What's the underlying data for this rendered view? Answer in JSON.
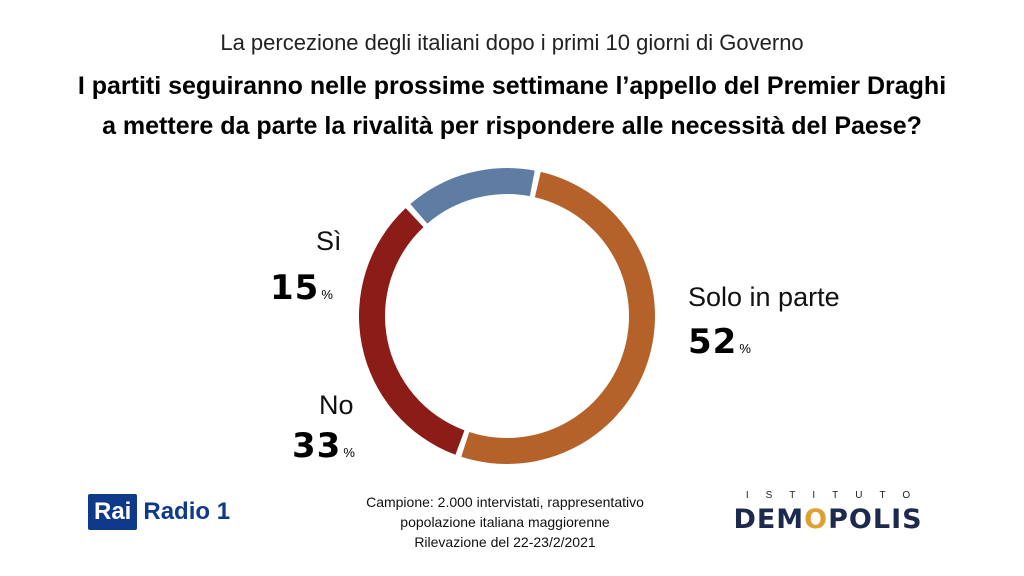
{
  "header": {
    "subtitle": "La percezione degli italiani dopo i primi 10 giorni di Governo",
    "title_line1": "I partiti seguiranno nelle prossime settimane l’appello del Premier Draghi",
    "title_line2": "a mettere da parte la rivalità per rispondere alle necessità del Paese?"
  },
  "chart_data": {
    "type": "pie",
    "variant": "donut",
    "slices": [
      {
        "label": "Solo in parte",
        "value": 52,
        "color": "#b5612a"
      },
      {
        "label": "No",
        "value": 33,
        "color": "#8c1c18"
      },
      {
        "label": "Sì",
        "value": 15,
        "color": "#5f7ca3"
      }
    ],
    "unit": "%"
  },
  "labels": {
    "si": {
      "name": "Sì",
      "value": "15",
      "unit": "%"
    },
    "solo": {
      "name": "Solo in parte",
      "value": "52",
      "unit": "%"
    },
    "no": {
      "name": "No",
      "value": "33",
      "unit": "%"
    }
  },
  "footer": {
    "line1": "Campione: 2.000 intervistati, rappresentativo",
    "line2": "popolazione italiana maggiorenne",
    "line3": "Rilevazione del 22-23/2/2021"
  },
  "logos": {
    "rai_box": "Rai",
    "rai_text": "Radio 1",
    "istituto": "ISTITUTO",
    "demopolis_pre": "DEM",
    "demopolis_o": "O",
    "demopolis_post": "POLIS"
  }
}
